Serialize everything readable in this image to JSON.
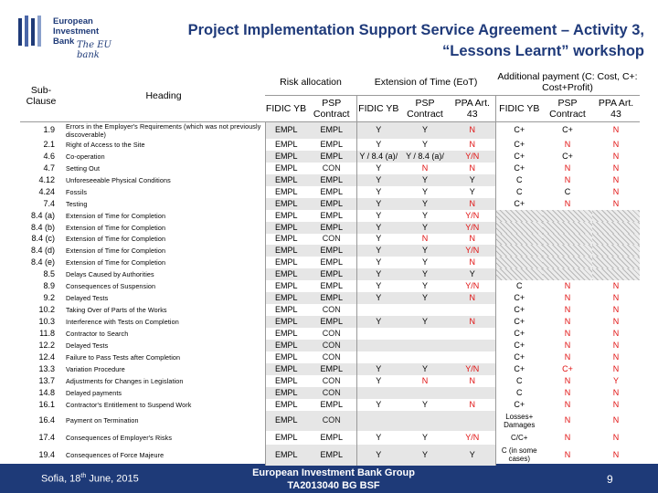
{
  "logo": {
    "line1": "European",
    "line2": "Investment",
    "line3": "Bank",
    "script": "The EU bank"
  },
  "title": {
    "line1": "Project Implementation Support Service Agreement – Activity 3,",
    "line2": "“Lessons Learnt” workshop"
  },
  "header": {
    "subclause": "Sub-Clause",
    "heading": "Heading",
    "risk": "Risk allocation",
    "eot": "Extension of Time (EoT)",
    "addpay": "Additional payment (C: Cost, C+: Cost+Profit)",
    "fidic_yb": "FIDIC YB",
    "psp_contract": "PSP Contract",
    "ppa": "PPA Art. 43"
  },
  "rows": [
    {
      "s": "1.9",
      "h": "Errors in the Employer's Requirements (which was not previously discoverable)",
      "r1": "EMPL",
      "r2": "EMPL",
      "e1": "Y",
      "e2": "Y",
      "e3": "N",
      "a1": "C+",
      "a2": "C+",
      "a3": "N"
    },
    {
      "s": "2.1",
      "h": "Right of Access to the Site",
      "r1": "EMPL",
      "r2": "EMPL",
      "e1": "Y",
      "e2": "Y",
      "e3": "N",
      "a1": "C+",
      "a2": "N",
      "a3": "N"
    },
    {
      "s": "4.6",
      "h": "Co-operation",
      "r1": "EMPL",
      "r2": "EMPL",
      "e1": "Y / 8.4 (a)/",
      "e2": "Y / 8.4 (a)/",
      "e3": "Y/N",
      "a1": "C+",
      "a2": "C+",
      "a3": "N"
    },
    {
      "s": "4.7",
      "h": "Setting Out",
      "r1": "EMPL",
      "r2": "CON",
      "e1": "Y",
      "e2": "N",
      "e3": "N",
      "a1": "C+",
      "a2": "N",
      "a3": "N"
    },
    {
      "s": "4.12",
      "h": "Unforeseeable Physical Conditions",
      "r1": "EMPL",
      "r2": "EMPL",
      "e1": "Y",
      "e2": "Y",
      "e3": "Y",
      "a1": "C",
      "a2": "N",
      "a3": "N"
    },
    {
      "s": "4.24",
      "h": "Fossils",
      "r1": "EMPL",
      "r2": "EMPL",
      "e1": "Y",
      "e2": "Y",
      "e3": "Y",
      "a1": "C",
      "a2": "C",
      "a3": "N"
    },
    {
      "s": "7.4",
      "h": "Testing",
      "r1": "EMPL",
      "r2": "EMPL",
      "e1": "Y",
      "e2": "Y",
      "e3": "N",
      "a1": "C+",
      "a2": "N",
      "a3": "N"
    },
    {
      "s": "8.4 (a)",
      "h": "Extension of Time for Completion",
      "r1": "EMPL",
      "r2": "EMPL",
      "e1": "Y",
      "e2": "Y",
      "e3": "Y/N",
      "a1": "",
      "a2": "",
      "a3": ""
    },
    {
      "s": "8.4 (b)",
      "h": "Extension of Time for Completion",
      "r1": "EMPL",
      "r2": "EMPL",
      "e1": "Y",
      "e2": "Y",
      "e3": "Y/N",
      "a1": "",
      "a2": "",
      "a3": ""
    },
    {
      "s": "8.4 (c)",
      "h": "Extension of Time for Completion",
      "r1": "EMPL",
      "r2": "CON",
      "e1": "Y",
      "e2": "N",
      "e3": "N",
      "a1": "",
      "a2": "",
      "a3": ""
    },
    {
      "s": "8.4 (d)",
      "h": "Extension of Time for Completion",
      "r1": "EMPL",
      "r2": "EMPL",
      "e1": "Y",
      "e2": "Y",
      "e3": "Y/N",
      "a1": "",
      "a2": "",
      "a3": ""
    },
    {
      "s": "8.4 (e)",
      "h": "Extension of Time for Completion",
      "r1": "EMPL",
      "r2": "EMPL",
      "e1": "Y",
      "e2": "Y",
      "e3": "N",
      "a1": "",
      "a2": "",
      "a3": ""
    },
    {
      "s": "8.5",
      "h": "Delays Caused by Authorities",
      "r1": "EMPL",
      "r2": "EMPL",
      "e1": "Y",
      "e2": "Y",
      "e3": "Y",
      "a1": "",
      "a2": "",
      "a3": ""
    },
    {
      "s": "8.9",
      "h": "Consequences of Suspension",
      "r1": "EMPL",
      "r2": "EMPL",
      "e1": "Y",
      "e2": "Y",
      "e3": "Y/N",
      "a1": "C",
      "a2": "N",
      "a3": "N"
    },
    {
      "s": "9.2",
      "h": "Delayed Tests",
      "r1": "EMPL",
      "r2": "EMPL",
      "e1": "Y",
      "e2": "Y",
      "e3": "N",
      "a1": "C+",
      "a2": "N",
      "a3": "N"
    },
    {
      "s": "10.2",
      "h": "Taking Over of Parts of the Works",
      "r1": "EMPL",
      "r2": "CON",
      "e1": "",
      "e2": "",
      "e3": "",
      "a1": "C+",
      "a2": "N",
      "a3": "N"
    },
    {
      "s": "10.3",
      "h": "Interference with Tests on Completion",
      "r1": "EMPL",
      "r2": "EMPL",
      "e1": "Y",
      "e2": "Y",
      "e3": "N",
      "a1": "C+",
      "a2": "N",
      "a3": "N"
    },
    {
      "s": "11.8",
      "h": "Contractor to Search",
      "r1": "EMPL",
      "r2": "CON",
      "e1": "",
      "e2": "",
      "e3": "",
      "a1": "C+",
      "a2": "N",
      "a3": "N"
    },
    {
      "s": "12.2",
      "h": "Delayed Tests",
      "r1": "EMPL",
      "r2": "CON",
      "e1": "",
      "e2": "",
      "e3": "",
      "a1": "C+",
      "a2": "N",
      "a3": "N"
    },
    {
      "s": "12.4",
      "h": "Failure to Pass Tests after Completion",
      "r1": "EMPL",
      "r2": "CON",
      "e1": "",
      "e2": "",
      "e3": "",
      "a1": "C+",
      "a2": "N",
      "a3": "N"
    },
    {
      "s": "13.3",
      "h": "Variation Procedure",
      "r1": "EMPL",
      "r2": "EMPL",
      "e1": "Y",
      "e2": "Y",
      "e3": "Y/N",
      "a1": "C+",
      "a2": "C+",
      "a3": "N"
    },
    {
      "s": "13.7",
      "h": "Adjustments for Changes in Legislation",
      "r1": "EMPL",
      "r2": "CON",
      "e1": "Y",
      "e2": "N",
      "e3": "N",
      "a1": "C",
      "a2": "N",
      "a3": "Y"
    },
    {
      "s": "14.8",
      "h": "Delayed payments",
      "r1": "EMPL",
      "r2": "CON",
      "e1": "",
      "e2": "",
      "e3": "",
      "a1": "C",
      "a2": "N",
      "a3": "N"
    },
    {
      "s": "16.1",
      "h": "Contractor's Entitlement to Suspend Work",
      "r1": "EMPL",
      "r2": "EMPL",
      "e1": "Y",
      "e2": "Y",
      "e3": "N",
      "a1": "C+",
      "a2": "N",
      "a3": "N"
    },
    {
      "s": "16.4",
      "h": "Payment on Termination",
      "r1": "EMPL",
      "r2": "CON",
      "e1": "",
      "e2": "",
      "e3": "",
      "a1": "Losses+ Damages",
      "a2": "N",
      "a3": "N"
    },
    {
      "s": "17.4",
      "h": "Consequences of Employer's Risks",
      "r1": "EMPL",
      "r2": "EMPL",
      "e1": "Y",
      "e2": "Y",
      "e3": "Y/N",
      "a1": "C/C+",
      "a2": "N",
      "a3": "N"
    },
    {
      "s": "19.4",
      "h": "Consequences of Force Majeure",
      "r1": "EMPL",
      "r2": "EMPL",
      "e1": "Y",
      "e2": "Y",
      "e3": "Y",
      "a1": "C (in some cases)",
      "a2": "N",
      "a3": "N"
    }
  ],
  "footer": {
    "date_prefix": "Sofia, 18",
    "date_sup": "th",
    "date_suffix": " June, 2015",
    "org_line1": "European Investment Bank Group",
    "org_line2": "TA2013040 BG BSF",
    "page": "9"
  },
  "colors": {
    "title": "#1f3a7a",
    "footer_bar": "#1e3a78",
    "highlight_red": "#e01010"
  }
}
